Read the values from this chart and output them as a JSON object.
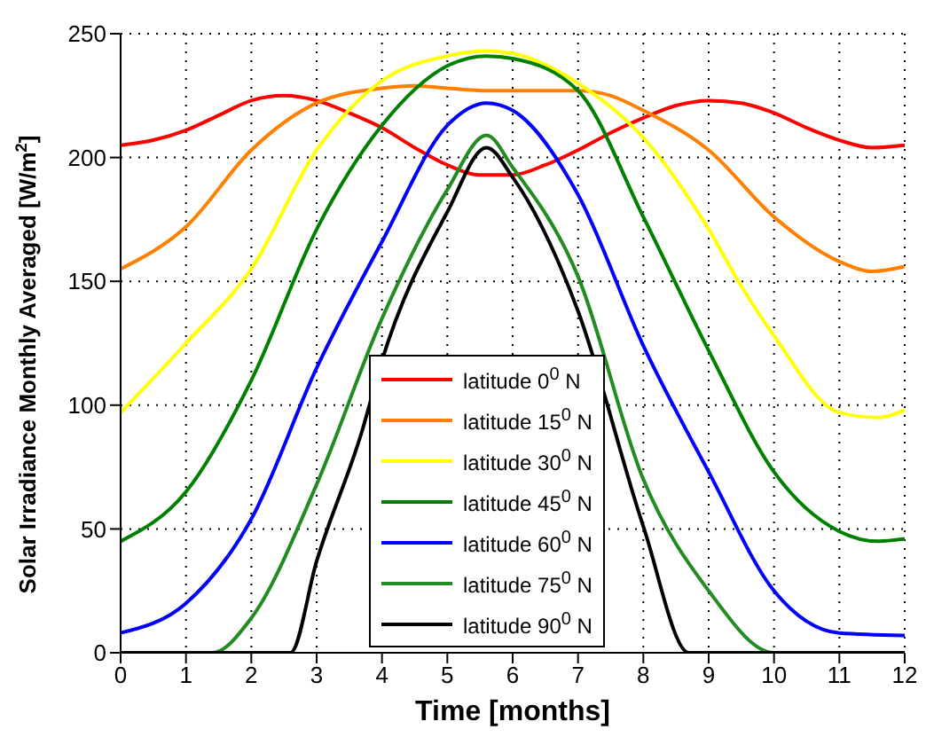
{
  "chart_data": {
    "type": "line",
    "xlabel": "Time [months]",
    "ylabel": "Solar Irradiance Monthly Averaged  [W/m$^{2}$]",
    "xlim": [
      0,
      12
    ],
    "ylim": [
      0,
      250
    ],
    "xticks": [
      0,
      1,
      2,
      3,
      4,
      5,
      6,
      7,
      8,
      9,
      10,
      11,
      12
    ],
    "yticks": [
      0,
      50,
      100,
      150,
      200,
      250
    ],
    "grid": true,
    "legend": "bottom",
    "marker": "none",
    "line_style": "solid",
    "series": [
      {
        "name": "latitude 0$^{0}$ N",
        "color": "#ff0000",
        "x": [
          0,
          0.5,
          1,
          1.5,
          2,
          2.5,
          3,
          3.5,
          4,
          4.5,
          5,
          5.5,
          6,
          6.5,
          7,
          7.5,
          8,
          8.5,
          9,
          9.5,
          10,
          10.5,
          11,
          11.5,
          12
        ],
        "values": [
          205,
          207,
          211,
          217,
          223,
          225,
          223,
          218,
          212,
          204,
          197,
          193,
          193,
          197,
          203,
          210,
          216,
          221,
          223,
          222,
          218,
          212,
          207,
          204,
          205
        ]
      },
      {
        "name": "latitude 15$^{0}$ N",
        "color": "#ff8000",
        "x": [
          0,
          1,
          2,
          3,
          4,
          4.5,
          5,
          5.6,
          6,
          7,
          7.5,
          8,
          9,
          10,
          11,
          11.5,
          12
        ],
        "values": [
          155,
          172,
          203,
          222,
          228,
          229,
          228,
          227,
          227,
          227,
          225,
          219,
          203,
          176,
          158,
          154,
          156
        ]
      },
      {
        "name": "latitude 30$^{0}$ N",
        "color": "#ffff00",
        "x": [
          0,
          1,
          2,
          3,
          4,
          5,
          5.6,
          6,
          7,
          8,
          9,
          9.5,
          10,
          11,
          11.6,
          12
        ],
        "values": [
          97,
          125,
          155,
          203,
          231,
          241,
          243,
          242,
          230,
          208,
          171,
          148,
          128,
          97,
          95,
          98
        ]
      },
      {
        "name": "latitude 45$^{0}$ N",
        "color": "#008000",
        "x": [
          0,
          1,
          2,
          3,
          4,
          5,
          5.6,
          6,
          7,
          8,
          9,
          10,
          11,
          11.6,
          12
        ],
        "values": [
          45,
          65,
          110,
          171,
          213,
          237,
          241,
          240,
          227,
          176,
          122,
          73,
          49,
          45,
          46
        ]
      },
      {
        "name": "latitude 60$^{0}$ N",
        "color": "#0000ff",
        "x": [
          0,
          1,
          2,
          3,
          4,
          5,
          5.6,
          6,
          7,
          8,
          9,
          10,
          11,
          12
        ],
        "values": [
          8,
          20,
          54,
          115,
          166,
          213,
          222,
          219,
          185,
          124,
          73,
          25,
          8,
          7
        ]
      },
      {
        "name": "latitude 75$^{0}$ N",
        "color": "#228b22",
        "x": [
          0,
          1,
          1.4,
          2,
          3,
          4,
          5,
          5.6,
          6,
          7,
          8,
          9,
          10,
          11,
          12
        ],
        "values": [
          0,
          0,
          0,
          14,
          68,
          135,
          187,
          209,
          196,
          152,
          70,
          25,
          0,
          0,
          0
        ]
      },
      {
        "name": "latitude 90$^{0}$ N",
        "color": "#000000",
        "x": [
          0,
          1,
          2,
          2.6,
          3,
          3.7,
          4,
          5,
          5.6,
          6,
          7,
          8,
          8.7,
          10,
          12
        ],
        "values": [
          0,
          0,
          0,
          0,
          37,
          90,
          118,
          178,
          204,
          192,
          138,
          51,
          0,
          0,
          0
        ]
      }
    ]
  }
}
